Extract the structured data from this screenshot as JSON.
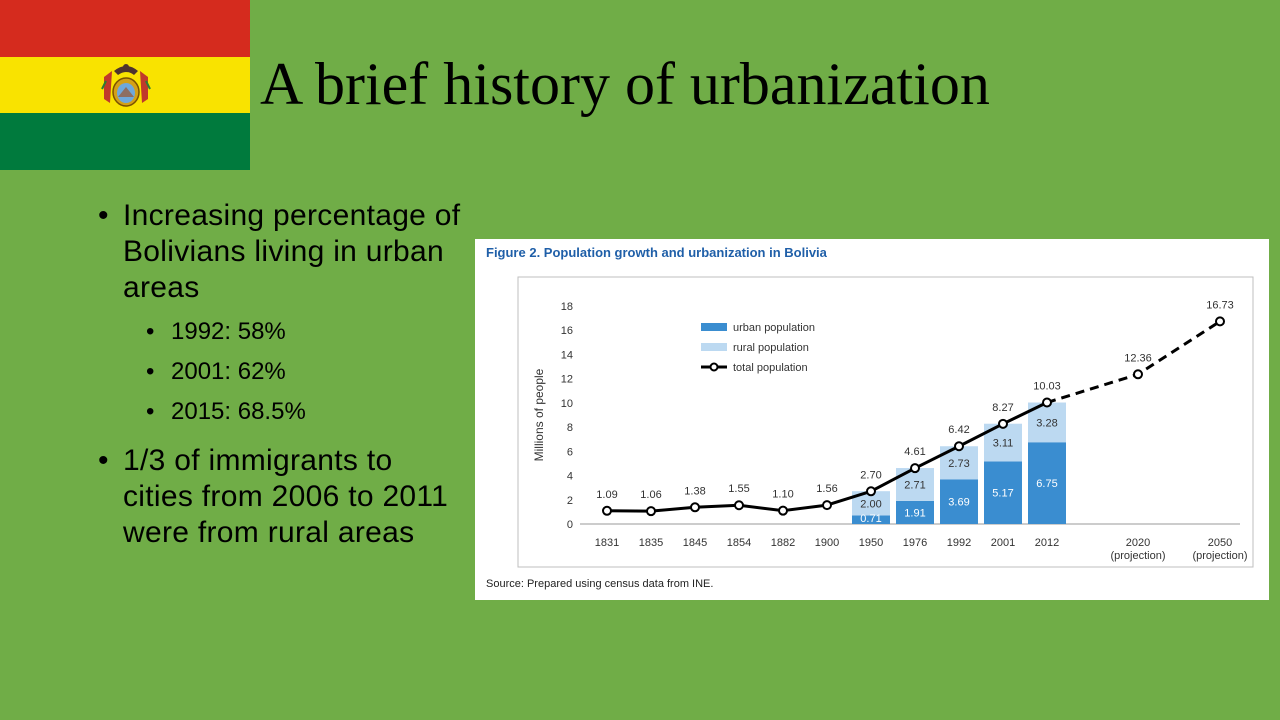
{
  "slide": {
    "title": "A brief history of urbanization",
    "flag": {
      "colors": [
        "#d52b1e",
        "#f9e300",
        "#007a3d"
      ],
      "emblem_icon": "bolivia-coat-of-arms-icon"
    },
    "bullets": [
      {
        "text": "Increasing percentage of Bolivians living in urban areas",
        "children": [
          "1992: 58%",
          "2001: 62%",
          "2015: 68.5%"
        ]
      },
      {
        "text": "1/3 of immigrants to cities from 2006 to 2011 were from rural areas"
      }
    ],
    "bullet_symbol": "•"
  },
  "figure": {
    "title": "Figure 2. Population growth and urbanization in Bolivia",
    "source": "Source: Prepared using census data from INE.",
    "chart_data": {
      "type": "bar",
      "ylabel": "Millions of people",
      "ylim": [
        0,
        18
      ],
      "yticks": [
        0,
        2,
        4,
        6,
        8,
        10,
        12,
        14,
        16,
        18
      ],
      "categories": [
        "1831",
        "1835",
        "1845",
        "1854",
        "1882",
        "1900",
        "1950",
        "1976",
        "1992",
        "2001",
        "2012",
        "2020",
        "2050"
      ],
      "category_sublabels": {
        "2020": "(projection)",
        "2050": "(projection)"
      },
      "series": [
        {
          "name": "urban population",
          "kind": "bar-stacked",
          "color": "#3a8dd0",
          "values": [
            null,
            null,
            null,
            null,
            null,
            null,
            0.71,
            1.91,
            3.69,
            5.17,
            6.75,
            null,
            null
          ],
          "labels": [
            "",
            "",
            "",
            "",
            "",
            "",
            "0.71",
            "1.91",
            "3.69",
            "5.17",
            "6.75",
            "",
            ""
          ]
        },
        {
          "name": "rural population",
          "kind": "bar-stacked",
          "color": "#bcd9f1",
          "values": [
            null,
            null,
            null,
            null,
            null,
            null,
            2.0,
            2.71,
            2.73,
            3.11,
            3.28,
            null,
            null
          ],
          "labels": [
            "",
            "",
            "",
            "",
            "",
            "",
            "2.00",
            "2.71",
            "2.73",
            "3.11",
            "3.28",
            "",
            ""
          ]
        },
        {
          "name": "total population",
          "kind": "line",
          "color": "#000000",
          "values": [
            1.09,
            1.06,
            1.38,
            1.55,
            1.1,
            1.56,
            2.7,
            4.61,
            6.42,
            8.27,
            10.03,
            12.36,
            16.73
          ],
          "labels": [
            "1.09",
            "1.06",
            "1.38",
            "1.55",
            "1.10",
            "1.56",
            "2.70",
            "4.61",
            "6.42",
            "8.27",
            "10.03",
            "12.36",
            "16.73"
          ],
          "projected_from_index": 10
        }
      ],
      "legend": "top-left"
    }
  }
}
